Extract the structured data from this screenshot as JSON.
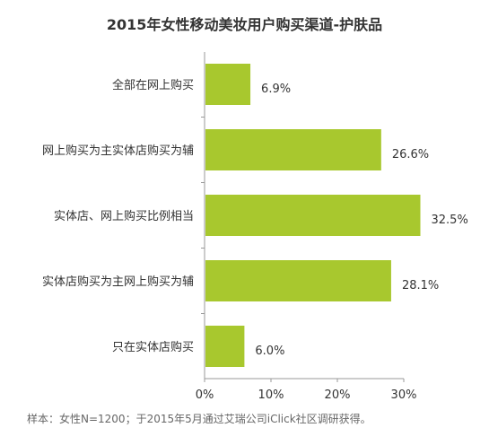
{
  "chart_data": {
    "type": "bar",
    "orientation": "horizontal",
    "title": "2015年女性移动美妆用户购买渠道-护肤品",
    "categories": [
      "全部在网上购买",
      "网上购买为主实体店购买为辅",
      "实体店、网上购买比例相当",
      "实体店购买为主网上购买为辅",
      "只在实体店购买"
    ],
    "values": [
      6.9,
      26.6,
      32.5,
      28.1,
      6.0
    ],
    "value_labels": [
      "6.9%",
      "26.6%",
      "32.5%",
      "28.1%",
      "6.0%"
    ],
    "xlim": [
      0,
      30
    ],
    "xticks": [
      0,
      10,
      20,
      30
    ],
    "xtick_labels": [
      "0%",
      "10%",
      "20%",
      "30%"
    ],
    "bar_color": "#a8c82e",
    "grid": false,
    "legend": "none",
    "footnote": "样本：女性N=1200；于2015年5月通过艾瑞公司iClick社区调研获得。"
  }
}
